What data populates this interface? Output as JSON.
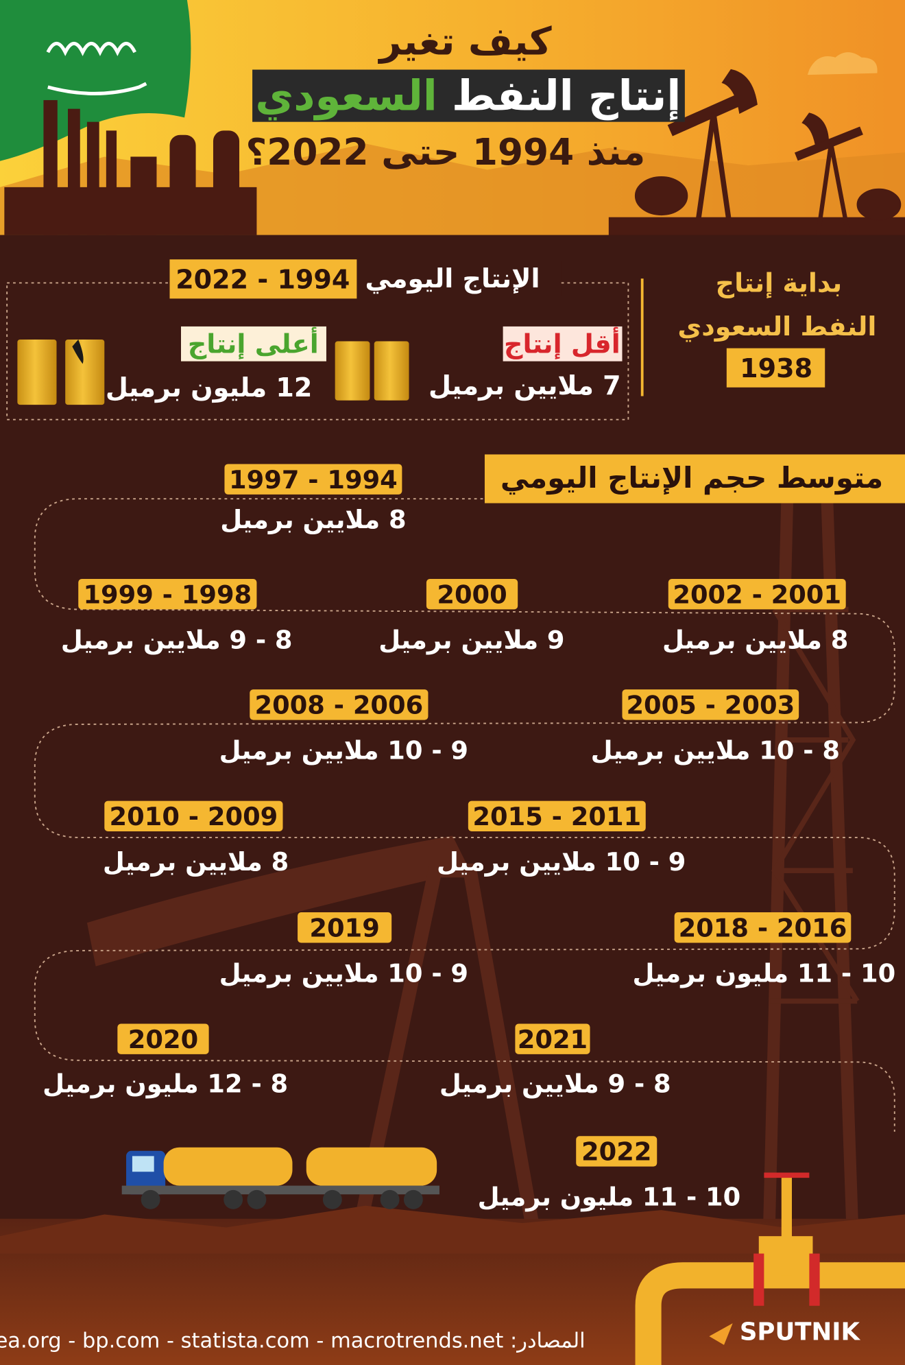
{
  "header": {
    "line1": "كيف تغير",
    "line2_main": "إنتاج النفط",
    "line2_highlight": "السعودي",
    "line3": "منذ 1994 حتى 2022؟"
  },
  "start": {
    "label_1": "بداية إنتاج",
    "label_2": "النفط السعودي",
    "year": "1938"
  },
  "daily": {
    "title": "الإنتاج اليومي",
    "period": "1994 - 2022",
    "lowest": {
      "label": "أقل إنتاج",
      "amount": "7 ملايين برميل"
    },
    "highest": {
      "label": "أعلى إنتاج",
      "amount": "12 مليون برميل"
    }
  },
  "average": {
    "title": "متوسط حجم الإنتاج اليومي",
    "entries": [
      {
        "period": "1994 - 1997",
        "amount": "8 ملايين برميل"
      },
      {
        "period": "2001 - 2002",
        "amount": "8 ملايين برميل"
      },
      {
        "period": "2000",
        "amount": "9 ملايين برميل"
      },
      {
        "period": "1998 - 1999",
        "amount": "8 - 9 ملايين برميل"
      },
      {
        "period": "2003 - 2005",
        "amount": "8 - 10 ملايين برميل"
      },
      {
        "period": "2006 - 2008",
        "amount": "9 - 10 ملايين برميل"
      },
      {
        "period": "2011 - 2015",
        "amount": "9 - 10 ملايين برميل"
      },
      {
        "period": "2009 - 2010",
        "amount": "8 ملايين برميل"
      },
      {
        "period": "2016 - 2018",
        "amount": "10 - 11 مليون برميل"
      },
      {
        "period": "2019",
        "amount": "9 - 10 ملايين برميل"
      },
      {
        "period": "2021",
        "amount": "8 - 9 ملايين برميل"
      },
      {
        "period": "2020",
        "amount": "8 - 12 مليون برميل"
      },
      {
        "period": "2022",
        "amount": "10 - 11 مليون برميل"
      }
    ]
  },
  "footer": {
    "sources_label": "المصادر:",
    "sources": "iea.org - bp.com - statista.com - macrotrends.net",
    "logo": "SPUTNIK"
  }
}
